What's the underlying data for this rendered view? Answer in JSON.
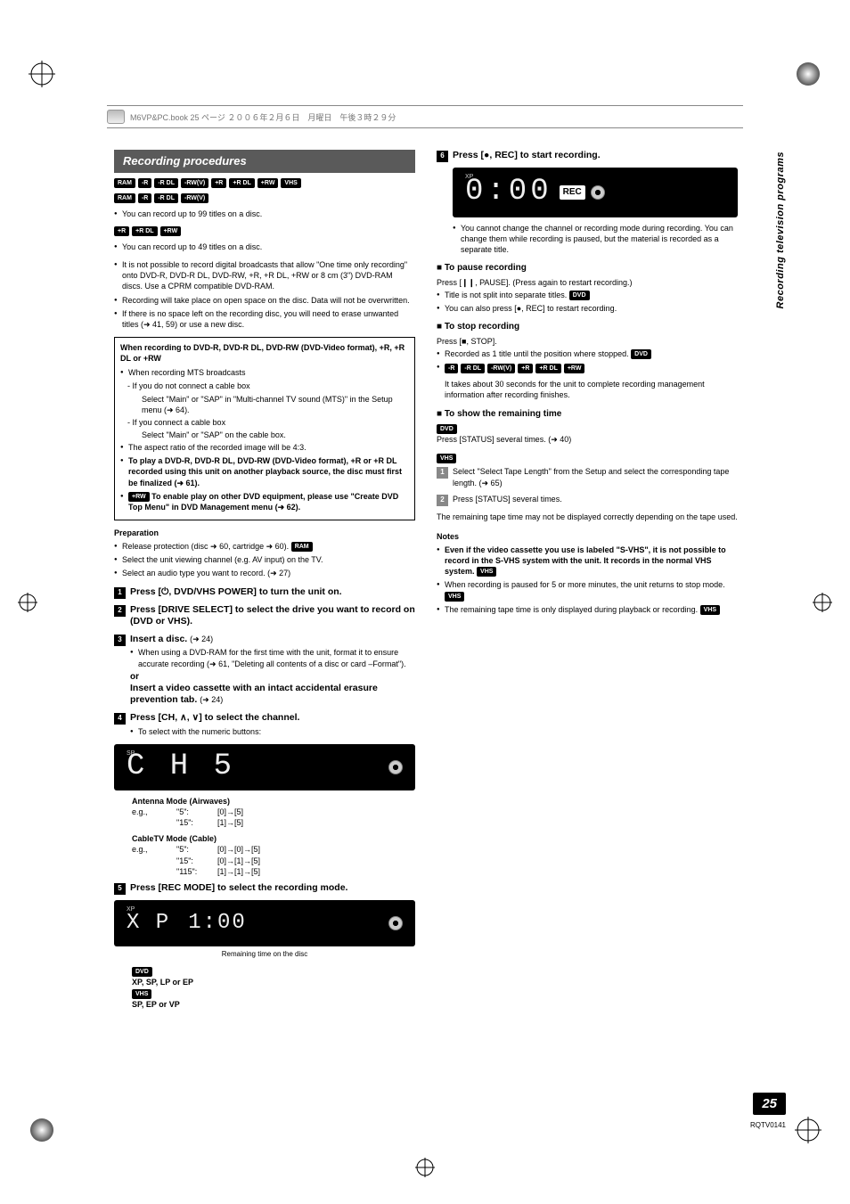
{
  "header_text": "M6VP&PC.book  25 ページ  ２００６年２月６日　月曜日　午後３時２９分",
  "side_label": "Recording television programs",
  "page_number": "25",
  "doc_code": "RQTV0141",
  "section_title": "Recording procedures",
  "tag_rows": {
    "main": [
      "RAM",
      "-R",
      "-R DL",
      "-RW(V)",
      "+R",
      "+R DL",
      "+RW",
      "VHS"
    ],
    "a": [
      "RAM",
      "-R",
      "-R DL",
      "-RW(V)"
    ],
    "b": [
      "+R",
      "+R DL",
      "+RW"
    ]
  },
  "intro": {
    "a_text": "You can record up to 99 titles on a disc.",
    "b_text": "You can record up to 49 titles on a disc.",
    "bullets": [
      "It is not possible to record digital broadcasts that allow \"One time only recording\" onto DVD-R, DVD-R DL, DVD-RW, +R, +R DL, +RW or 8 cm (3\") DVD-RAM discs. Use a CPRM compatible DVD-RAM.",
      "Recording will take place on open space on the disc. Data will not be overwritten.",
      "If there is no space left on the recording disc, you will need to erase unwanted titles (➜ 41, 59) or use a new disc."
    ]
  },
  "box": {
    "title": "When recording to DVD-R, DVD-R DL, DVD-RW (DVD-Video format), +R, +R DL or +RW",
    "lead": "When recording MTS broadcasts",
    "sub": [
      "- If you do not connect a cable box",
      "Select \"Main\" or \"SAP\" in \"Multi-channel TV sound (MTS)\" in the Setup menu (➜ 64).",
      "- If you connect a cable box",
      "Select \"Main\" or \"SAP\" on the cable box."
    ],
    "bullets2": [
      "The aspect ratio of the recorded image will be 4:3.",
      "To play a DVD-R, DVD-R DL, DVD-RW (DVD-Video format), +R or +R DL recorded using this unit on another playback source, the disc must first be finalized (➜ 61)."
    ],
    "rw_note_label": "+RW",
    "rw_note": "To enable play on other DVD equipment, please use \"Create DVD Top Menu\" in DVD Management menu (➜ 62)."
  },
  "prep": {
    "title": "Preparation",
    "items": [
      {
        "text": "Release protection (disc ➜ 60, cartridge ➜ 60).",
        "tag": "RAM"
      },
      {
        "text": "Select the unit viewing channel (e.g. AV input) on the TV."
      },
      {
        "text": "Select an audio type you want to record. (➜ 27)"
      }
    ]
  },
  "steps": {
    "s1": "Press [⏻, DVD/VHS POWER] to turn the unit on.",
    "s2": "Press [DRIVE SELECT] to select the drive you want to record on (DVD or VHS).",
    "s3_t": "Insert a disc.",
    "s3_ref": "(➜ 24)",
    "s3_sub": "When using a DVD-RAM for the first time with the unit, format it to ensure accurate recording (➜ 61, \"Deleting all contents of a disc or card –Format\").",
    "or": "or",
    "s3b_t": "Insert a video cassette with an intact accidental erasure prevention tab.",
    "s3b_ref": "(➜ 24)",
    "s4": "Press [CH, ∧, ∨] to select the channel.",
    "s4_sub": "To select with the numeric buttons:",
    "s5": "Press [REC MODE] to select the recording mode.",
    "s6": "Press [●, REC] to start recording."
  },
  "display1": {
    "badge": "SP",
    "text": "C H  5"
  },
  "antenna": {
    "title": "Antenna Mode (Airwaves)",
    "rows": [
      {
        "c1": "e.g.,",
        "c2": "\"5\":",
        "c3": "[0]→[5]"
      },
      {
        "c1": "",
        "c2": "\"15\":",
        "c3": "[1]→[5]"
      }
    ]
  },
  "cable": {
    "title": "CableTV Mode (Cable)",
    "rows": [
      {
        "c1": "e.g.,",
        "c2": "\"5\":",
        "c3": "[0]→[0]→[5]"
      },
      {
        "c1": "",
        "c2": "\"15\":",
        "c3": "[0]→[1]→[5]"
      },
      {
        "c1": "",
        "c2": "\"115\":",
        "c3": "[1]→[1]→[5]"
      }
    ]
  },
  "display2": {
    "badge": "XP",
    "left": "X P",
    "right": "1:00",
    "caption": "Remaining time on the disc"
  },
  "modes": {
    "dvd_tag": "DVD",
    "dvd": "XP, SP, LP or EP",
    "vhs_tag": "VHS",
    "vhs": "SP, EP or VP"
  },
  "display3": {
    "badge": "XP",
    "text": "0:00",
    "rec": "REC"
  },
  "s6_note": "You cannot change the channel or recording mode during recording. You can change them while recording is paused, but the material is recorded as a separate title.",
  "pause": {
    "title": "■ To pause recording",
    "line1": "Press [❙❙, PAUSE]. (Press again to restart recording.)",
    "b1": "Title is not split into separate titles.",
    "b1_tag": "DVD",
    "b2": "You can also press [●, REC] to restart recording."
  },
  "stop": {
    "title": "■ To stop recording",
    "line1": "Press [■, STOP].",
    "b1": "Recorded as 1 title until the position where stopped.",
    "b1_tag": "DVD",
    "tags": [
      "-R",
      "-R DL",
      "-RW(V)",
      "+R",
      "+R DL",
      "+RW"
    ],
    "b2": "It takes about 30 seconds for the unit to complete recording management information after recording finishes."
  },
  "remain": {
    "title": "■ To show the remaining time",
    "dvd_tag": "DVD",
    "dvd_line": "Press [STATUS] several times. (➜ 40)",
    "vhs_tag": "VHS",
    "v1": "Select \"Select Tape Length\" from the Setup and select the corresponding tape length. (➜ 65)",
    "v2": "Press [STATUS] several times.",
    "tail": "The remaining tape time may not be displayed correctly depending on the tape used."
  },
  "notes": {
    "title": "Notes",
    "b1": "Even if the video cassette you use is labeled \"S-VHS\", it is not possible to record in the S-VHS system with the unit. It records in the normal VHS system.",
    "b1_tag": "VHS",
    "b2": "When recording is paused for 5 or more minutes, the unit returns to stop mode.",
    "b2_tag": "VHS",
    "b3": "The remaining tape time is only displayed during playback or recording.",
    "b3_tag": "VHS"
  },
  "colors": {
    "header_bg": "#5a5a5a",
    "tag_bg": "#000000",
    "panel_bg": "#000000",
    "text": "#000000"
  }
}
